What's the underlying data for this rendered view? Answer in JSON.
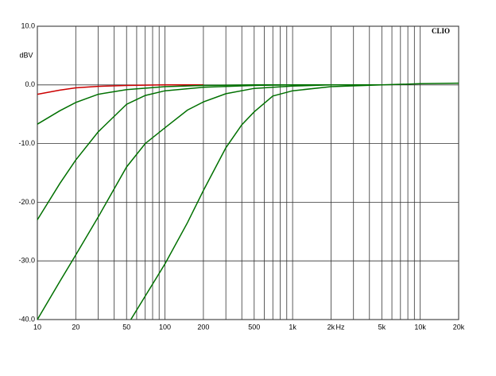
{
  "chart_data": {
    "type": "line",
    "brand": "CLIO",
    "y_unit": "dBV",
    "x_unit": "Hz",
    "xscale": "log",
    "xlim": [
      10,
      20000
    ],
    "ylim": [
      -40,
      10
    ],
    "grid": true,
    "xticks": [
      10,
      20,
      50,
      100,
      200,
      500,
      {
        "value": 1000,
        "label": "1k"
      },
      {
        "value": 2000,
        "label": "2k"
      },
      {
        "value": 5000,
        "label": "5k"
      },
      {
        "value": 10000,
        "label": "10k"
      },
      {
        "value": 20000,
        "label": "20k"
      }
    ],
    "xgrid": [
      30,
      40,
      60,
      70,
      80,
      90,
      300,
      400,
      600,
      700,
      800,
      900,
      3000,
      4000,
      6000,
      7000,
      8000,
      9000
    ],
    "yticks": [
      {
        "value": 10,
        "label": "10.0"
      },
      {
        "value": 0,
        "label": "0.0"
      },
      {
        "value": -10,
        "label": "-10.0"
      },
      {
        "value": -20,
        "label": "-20.0"
      },
      {
        "value": -30,
        "label": "-30.0"
      },
      {
        "value": -40,
        "label": "-40.0"
      }
    ],
    "series": [
      {
        "color": "#cc0000",
        "x": [
          10,
          15,
          20,
          30,
          50,
          100,
          200
        ],
        "values": [
          -1.6,
          -0.9,
          -0.5,
          -0.25,
          -0.1,
          0,
          0
        ]
      },
      {
        "color": "#007000",
        "x": [
          10,
          15,
          20,
          30,
          50,
          100,
          200,
          500,
          1000
        ],
        "values": [
          -6.7,
          -4.4,
          -3,
          -1.6,
          -0.8,
          -0.3,
          -0.1,
          0,
          0
        ]
      },
      {
        "color": "#007000",
        "x": [
          10,
          15,
          20,
          30,
          50,
          70,
          100,
          200,
          500,
          1000,
          2000
        ],
        "values": [
          -23,
          -16.8,
          -12.8,
          -8,
          -3.3,
          -1.8,
          -1,
          -0.4,
          -0.1,
          0,
          0
        ]
      },
      {
        "color": "#007000",
        "x": [
          10,
          15,
          20,
          30,
          50,
          70,
          100,
          150,
          200,
          300,
          500,
          1000,
          2000,
          5000
        ],
        "values": [
          -40,
          -33.5,
          -29,
          -22.5,
          -14,
          -10,
          -7.3,
          -4.3,
          -2.9,
          -1.5,
          -0.6,
          -0.2,
          0,
          0
        ]
      },
      {
        "color": "#007000",
        "x": [
          54,
          70,
          100,
          150,
          200,
          300,
          400,
          500,
          700,
          1000,
          2000,
          5000,
          10000,
          20000
        ],
        "values": [
          -40,
          -36,
          -30.5,
          -23.5,
          -18,
          -10.7,
          -6.8,
          -4.6,
          -1.9,
          -1,
          -0.3,
          0,
          0.2,
          0.3
        ]
      }
    ]
  }
}
